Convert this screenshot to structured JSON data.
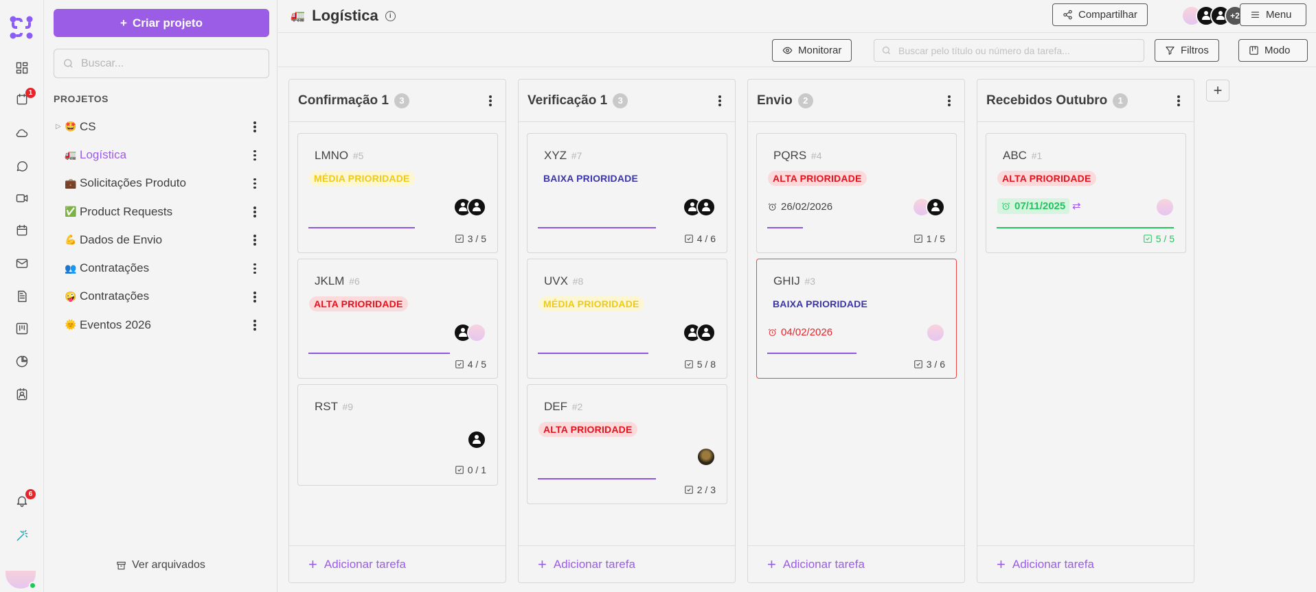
{
  "rail": {
    "notifications_badge_top": "1",
    "notifications_badge_bottom": "6"
  },
  "sidebar": {
    "create_label": "Criar projeto",
    "search_placeholder": "Buscar...",
    "projects_heading": "PROJETOS",
    "projects": [
      {
        "emoji": "🤩",
        "label": "CS",
        "has_children": true,
        "active": false
      },
      {
        "emoji": "🚛",
        "label": "Logística",
        "active": true
      },
      {
        "emoji": "💼",
        "label": "Solicitações Produto",
        "active": false
      },
      {
        "emoji": "✅",
        "label": "Product Requests",
        "active": false
      },
      {
        "emoji": "💪",
        "label": "Dados de Envio",
        "active": false
      },
      {
        "emoji": "👥",
        "label": "Contratações",
        "active": false
      },
      {
        "emoji": "🤪",
        "label": "Contratações",
        "active": false
      },
      {
        "emoji": "🌞",
        "label": "Eventos 2026",
        "active": false
      }
    ],
    "archived_label": "Ver arquivados"
  },
  "header": {
    "emoji": "🚛",
    "title": "Logística",
    "share_label": "Compartilhar",
    "members_more": "+2",
    "menu_label": "Menu"
  },
  "toolbar": {
    "monitor_label": "Monitorar",
    "search_placeholder": "Buscar pelo título ou número da tarefa...",
    "filters_label": "Filtros",
    "mode_label": "Modo"
  },
  "board": {
    "add_task_label": "Adicionar tarefa",
    "add_column_label": "+",
    "columns": [
      {
        "title": "Confirmação 1",
        "count": "3",
        "cards": [
          {
            "title": "LMNO",
            "num": "#5",
            "priority": "MÉDIA PRIORIDADE",
            "checklist": "3 / 5"
          },
          {
            "title": "JKLM",
            "num": "#6",
            "priority": "ALTA PRIORIDADE",
            "checklist": "4 / 5"
          },
          {
            "title": "RST",
            "num": "#9",
            "checklist": "0 / 1"
          }
        ]
      },
      {
        "title": "Verificação 1",
        "count": "3",
        "cards": [
          {
            "title": "XYZ",
            "num": "#7",
            "priority": "BAIXA PRIORIDADE",
            "checklist": "4 / 6"
          },
          {
            "title": "UVX",
            "num": "#8",
            "priority": "MÉDIA PRIORIDADE",
            "checklist": "5 / 8"
          },
          {
            "title": "DEF",
            "num": "#2",
            "priority": "ALTA PRIORIDADE",
            "checklist": "2 / 3"
          }
        ]
      },
      {
        "title": "Envio",
        "count": "2",
        "cards": [
          {
            "title": "PQRS",
            "num": "#4",
            "priority": "ALTA PRIORIDADE",
            "due": "26/02/2026",
            "checklist": "1 / 5"
          },
          {
            "title": "GHIJ",
            "num": "#3",
            "priority": "BAIXA PRIORIDADE",
            "due": "04/02/2026",
            "checklist": "3 / 6"
          }
        ]
      },
      {
        "title": "Recebidos Outubro",
        "count": "1",
        "cards": [
          {
            "title": "ABC",
            "num": "#1",
            "priority": "ALTA PRIORIDADE",
            "due": "07/11/2025",
            "checklist": "5 / 5"
          }
        ]
      }
    ]
  },
  "colors": {
    "accent": "#9b5de5",
    "high_priority": "#e5121d",
    "medium_priority": "#eccb1c",
    "low_priority": "#3b35a8",
    "complete": "#22c55e",
    "notification": "#e5252a"
  }
}
